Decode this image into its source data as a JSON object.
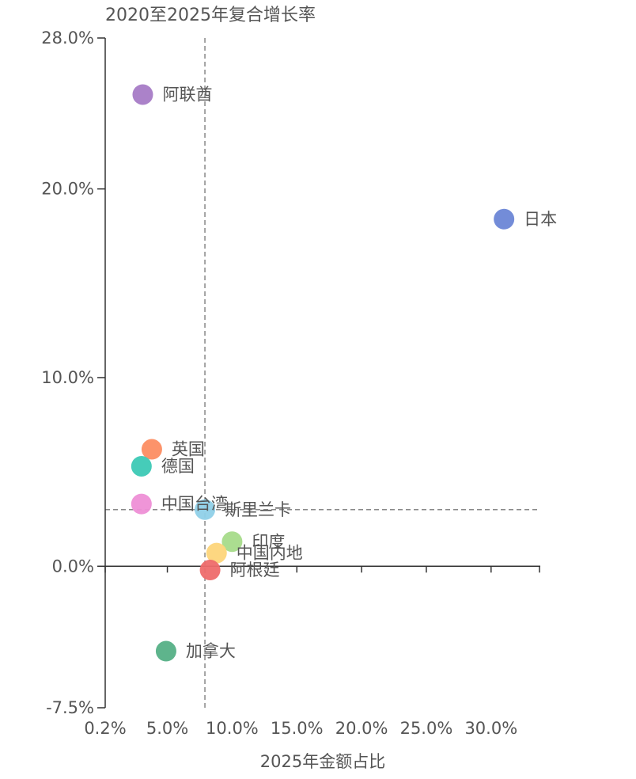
{
  "chart_data": {
    "type": "scatter",
    "title": "2020至2025年复合增长率",
    "xlabel": "2025年金额占比",
    "ylabel": "",
    "xlim": [
      0.2,
      33.8
    ],
    "ylim": [
      -7.5,
      28.0
    ],
    "x_ticks": [
      0.2,
      5.0,
      10.0,
      15.0,
      20.0,
      25.0,
      30.0
    ],
    "x_tick_labels": [
      "0.2%",
      "5.0%",
      "10.0%",
      "15.0%",
      "20.0%",
      "25.0%",
      "30.0%"
    ],
    "y_ticks": [
      -7.5,
      0.0,
      10.0,
      20.0,
      28.0
    ],
    "y_tick_labels": [
      "-7.5%",
      "0.0%",
      "10.0%",
      "20.0%",
      "28.0%"
    ],
    "x_reference": 7.9,
    "y_reference": 3.0,
    "grid": false,
    "points": [
      {
        "label": "阿联酋",
        "x": 3.1,
        "y": 25.0,
        "color": "#A77BC6"
      },
      {
        "label": "日本",
        "x": 31.0,
        "y": 18.4,
        "color": "#6B86D6"
      },
      {
        "label": "英国",
        "x": 3.8,
        "y": 6.2,
        "color": "#FC8D62"
      },
      {
        "label": "德国",
        "x": 3.0,
        "y": 5.3,
        "color": "#3CC9B5"
      },
      {
        "label": "中国台湾",
        "x": 3.0,
        "y": 3.3,
        "color": "#EE8FD6"
      },
      {
        "label": "斯里兰卡",
        "x": 7.9,
        "y": 3.0,
        "color": "#8FD0E8"
      },
      {
        "label": "印度",
        "x": 10.0,
        "y": 1.3,
        "color": "#A6DB8A"
      },
      {
        "label": "中国内地",
        "x": 8.8,
        "y": 0.7,
        "color": "#FDD57A"
      },
      {
        "label": "阿根廷",
        "x": 8.3,
        "y": -0.2,
        "color": "#EE6B6B"
      },
      {
        "label": "加拿大",
        "x": 4.9,
        "y": -4.5,
        "color": "#55B086"
      }
    ]
  }
}
